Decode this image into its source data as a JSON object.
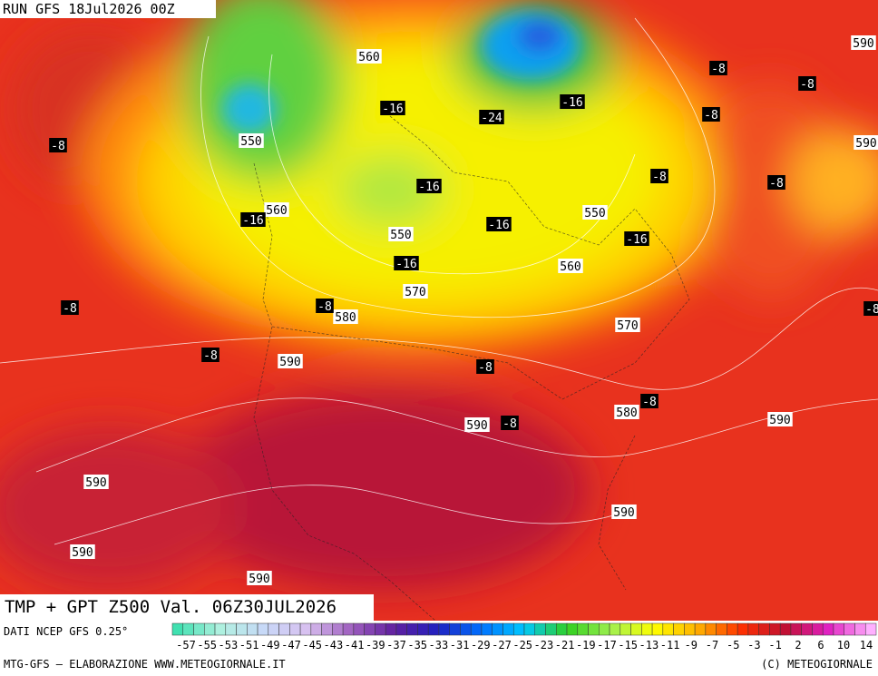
{
  "header": {
    "run": "RUN GFS 18Jul2026 00Z"
  },
  "map": {
    "geopotential_labels": [
      "560",
      "590",
      "590",
      "550",
      "560",
      "550",
      "550",
      "560",
      "570",
      "580",
      "570",
      "590",
      "590",
      "580",
      "590",
      "590",
      "590",
      "590",
      "590"
    ],
    "temperature_labels": [
      "-8",
      "-16",
      "-24",
      "-16",
      "-8",
      "-8",
      "-8",
      "-8",
      "-8",
      "-16",
      "-16",
      "-16",
      "-16",
      "-16",
      "-8",
      "-8",
      "-8",
      "-8",
      "-8",
      "-8",
      "-8"
    ]
  },
  "caption": "TMP + GPT Z500 Val. 06Z30JUL2026",
  "footer": {
    "source": "DATI NCEP GFS 0.25°",
    "credit": "MTG-GFS — ELABORAZIONE WWW.METEOGIORNALE.IT",
    "copyright": "(C) METEOGIORNALE"
  },
  "legend": {
    "labels": [
      "-57",
      "-55",
      "-53",
      "-51",
      "-49",
      "-47",
      "-45",
      "-43",
      "-41",
      "-39",
      "-37",
      "-35",
      "-33",
      "-31",
      "-29",
      "-27",
      "-25",
      "-23",
      "-21",
      "-19",
      "-17",
      "-15",
      "-13",
      "-11",
      "-9",
      "-7",
      "-5",
      "-3",
      "-1",
      "2",
      "6",
      "10",
      "14"
    ]
  }
}
